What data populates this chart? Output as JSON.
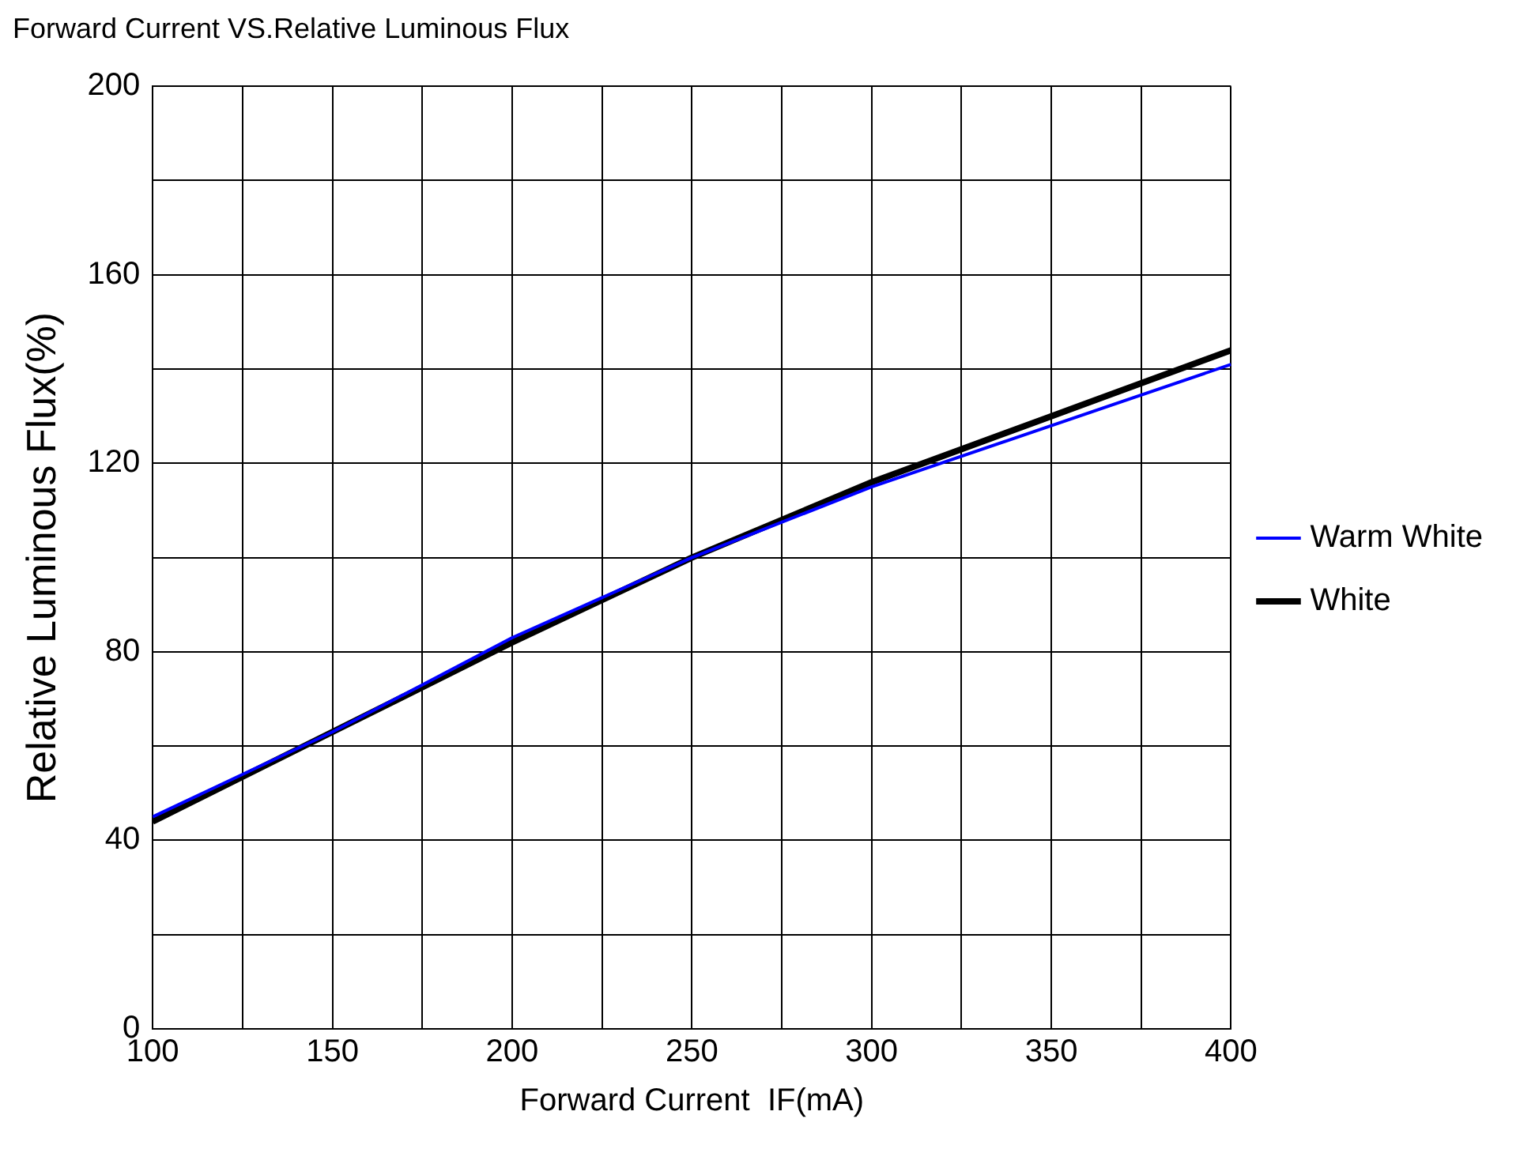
{
  "chart_data": {
    "type": "line",
    "title": "Forward Current VS.Relative Luminous Flux",
    "xlabel": "Forward Current  IF(mA)",
    "ylabel": "Relative Luminous Flux(%)",
    "x": [
      100,
      150,
      200,
      250,
      300,
      350,
      400
    ],
    "series": [
      {
        "name": "Warm White",
        "color": "#0000ff",
        "values": [
          45,
          63,
          83,
          100,
          115,
          128,
          141
        ]
      },
      {
        "name": "White",
        "color": "#000000",
        "values": [
          44,
          63,
          82,
          100,
          116,
          130,
          144
        ]
      }
    ],
    "xlim": [
      100,
      400
    ],
    "xticks": [
      100,
      {
        "value": 125,
        "label": null
      },
      150,
      {
        "value": 175,
        "label": null
      },
      200,
      {
        "value": 225,
        "label": null
      },
      250,
      {
        "value": 275,
        "label": null
      },
      300,
      {
        "value": 325,
        "label": null
      },
      350,
      {
        "value": 375,
        "label": null
      },
      400
    ],
    "ylim": [
      0,
      200
    ],
    "yticks": [
      0,
      {
        "value": 20,
        "label": null
      },
      40,
      {
        "value": 60,
        "label": null
      },
      80,
      {
        "value": 100,
        "label": null
      },
      120,
      {
        "value": 140,
        "label": null
      },
      160,
      {
        "value": 180,
        "label": null
      },
      200
    ],
    "grid": true,
    "legend": "right",
    "marker": "none",
    "line_style": "solid"
  }
}
